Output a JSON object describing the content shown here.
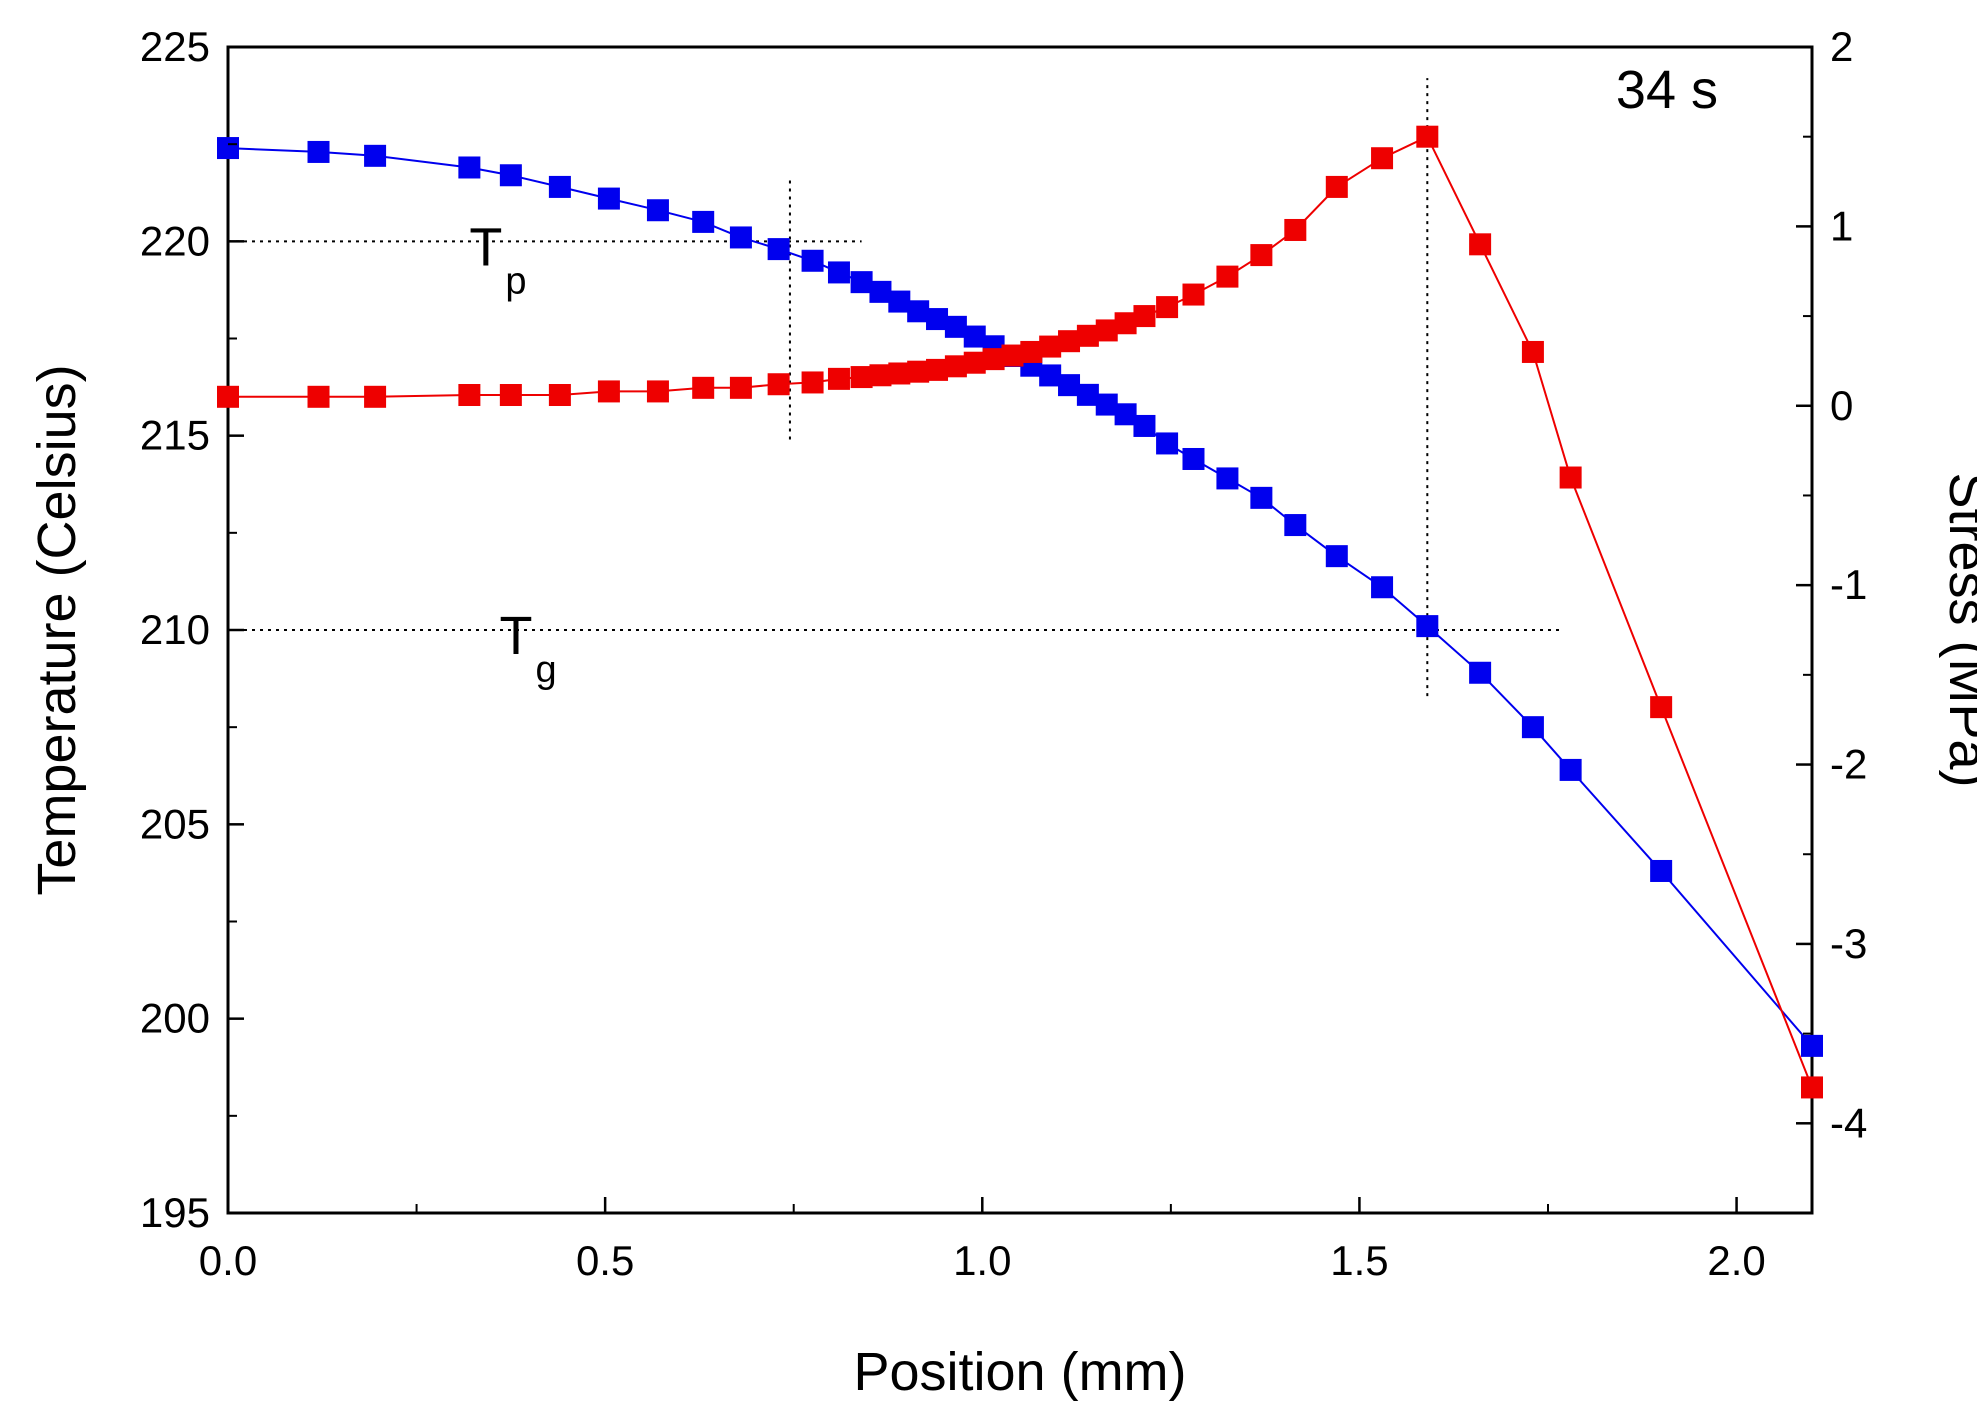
{
  "chart_data": {
    "type": "line",
    "title": "",
    "annotation": "34 s",
    "xlabel": "Position (mm)",
    "ylabel": "Temperature (Celsius)",
    "y2label": "Stress (MPa)",
    "xlim": [
      0,
      2.1
    ],
    "ylim": [
      195,
      225
    ],
    "y2lim": [
      -4.5,
      2
    ],
    "xticks": [
      "0.0",
      "0.5",
      "1.0",
      "1.5",
      "2.0"
    ],
    "xtick_values": [
      0,
      0.5,
      1.0,
      1.5,
      2.0
    ],
    "yticks": [
      "195",
      "200",
      "205",
      "210",
      "215",
      "220",
      "225"
    ],
    "ytick_values": [
      195,
      200,
      205,
      210,
      215,
      220,
      225
    ],
    "y2ticks": [
      "-4",
      "-3",
      "-2",
      "-1",
      "0",
      "1",
      "2"
    ],
    "y2tick_values": [
      -4,
      -3,
      -2,
      -1,
      0,
      1,
      2
    ],
    "legend": "none",
    "grid": false,
    "reference_lines": [
      {
        "name": "Tp",
        "label_main": "T",
        "label_sub": "p",
        "type": "horizontal",
        "axis": "y",
        "value": 220,
        "x_from": 0,
        "x_to": 0.84,
        "label_x": 0.32
      },
      {
        "name": "Tg",
        "label_main": "T",
        "label_sub": "g",
        "type": "horizontal",
        "axis": "y",
        "value": 210,
        "x_from": 0,
        "x_to": 1.77,
        "label_x": 0.36
      },
      {
        "name": "vline-tp",
        "type": "vertical",
        "value": 0.745,
        "y_from": 214.9,
        "y_to": 221.6
      },
      {
        "name": "vline-tg",
        "type": "vertical",
        "value": 1.59,
        "y_from": 208.3,
        "y_to": 224.2
      }
    ],
    "series": [
      {
        "name": "Temperature",
        "axis": "left",
        "color": "#0000ee",
        "x": [
          0.0,
          0.12,
          0.195,
          0.32,
          0.375,
          0.44,
          0.505,
          0.57,
          0.63,
          0.68,
          0.73,
          0.775,
          0.81,
          0.84,
          0.865,
          0.89,
          0.915,
          0.94,
          0.965,
          0.99,
          1.015,
          1.04,
          1.065,
          1.09,
          1.115,
          1.14,
          1.165,
          1.19,
          1.215,
          1.245,
          1.28,
          1.325,
          1.37,
          1.415,
          1.47,
          1.53,
          1.59,
          1.66,
          1.73,
          1.78,
          1.9,
          2.1
        ],
        "values": [
          222.4,
          222.3,
          222.2,
          221.9,
          221.7,
          221.4,
          221.1,
          220.8,
          220.5,
          220.1,
          219.8,
          219.5,
          219.2,
          218.95,
          218.7,
          218.45,
          218.2,
          218.0,
          217.8,
          217.55,
          217.3,
          217.05,
          216.8,
          216.55,
          216.3,
          216.05,
          215.8,
          215.55,
          215.25,
          214.8,
          214.4,
          213.9,
          213.4,
          212.7,
          211.9,
          211.1,
          210.1,
          208.9,
          207.5,
          206.4,
          203.8,
          199.3
        ]
      },
      {
        "name": "Stress",
        "axis": "right",
        "color": "#ee0000",
        "x": [
          0.0,
          0.12,
          0.195,
          0.32,
          0.375,
          0.44,
          0.505,
          0.57,
          0.63,
          0.68,
          0.73,
          0.775,
          0.81,
          0.84,
          0.865,
          0.89,
          0.915,
          0.94,
          0.965,
          0.99,
          1.015,
          1.04,
          1.065,
          1.09,
          1.115,
          1.14,
          1.165,
          1.19,
          1.215,
          1.245,
          1.28,
          1.325,
          1.37,
          1.415,
          1.47,
          1.53,
          1.59,
          1.66,
          1.73,
          1.78,
          1.9,
          2.1
        ],
        "values": [
          0.05,
          0.05,
          0.05,
          0.06,
          0.06,
          0.06,
          0.08,
          0.08,
          0.1,
          0.1,
          0.12,
          0.13,
          0.15,
          0.16,
          0.17,
          0.18,
          0.19,
          0.2,
          0.22,
          0.24,
          0.26,
          0.28,
          0.3,
          0.33,
          0.36,
          0.39,
          0.42,
          0.46,
          0.5,
          0.55,
          0.62,
          0.72,
          0.84,
          0.98,
          1.22,
          1.38,
          1.5,
          0.9,
          0.3,
          -0.4,
          -1.68,
          -3.8
        ]
      }
    ]
  }
}
